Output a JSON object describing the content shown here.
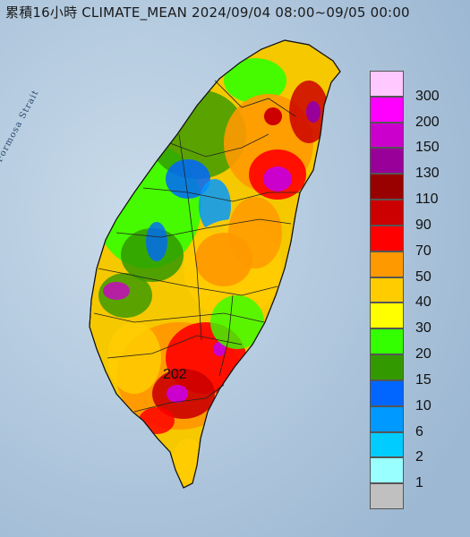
{
  "title": "累積16小時 CLIMATE_MEAN 2024/09/04 08:00~09/05 00:00",
  "water_label": "Formosa Strait",
  "peak_value": "202",
  "colors": {
    "sea": "#b9cde0",
    "land_base": "#f0b400"
  },
  "legend": [
    {
      "label": "300",
      "color": "#ffc8ff"
    },
    {
      "label": "200",
      "color": "#ff00ff"
    },
    {
      "label": "150",
      "color": "#cc00cc"
    },
    {
      "label": "130",
      "color": "#99009a"
    },
    {
      "label": "110",
      "color": "#990000"
    },
    {
      "label": "90",
      "color": "#cc0000"
    },
    {
      "label": "70",
      "color": "#ff0000"
    },
    {
      "label": "50",
      "color": "#ff9900"
    },
    {
      "label": "40",
      "color": "#ffcc00"
    },
    {
      "label": "30",
      "color": "#ffff00"
    },
    {
      "label": "20",
      "color": "#33ff00"
    },
    {
      "label": "15",
      "color": "#339900"
    },
    {
      "label": "10",
      "color": "#0066ff"
    },
    {
      "label": "6",
      "color": "#0099ff"
    },
    {
      "label": "2",
      "color": "#00ccff"
    },
    {
      "label": "1",
      "color": "#99ffff"
    },
    {
      "label": "",
      "color": "#c0c0c0"
    }
  ]
}
